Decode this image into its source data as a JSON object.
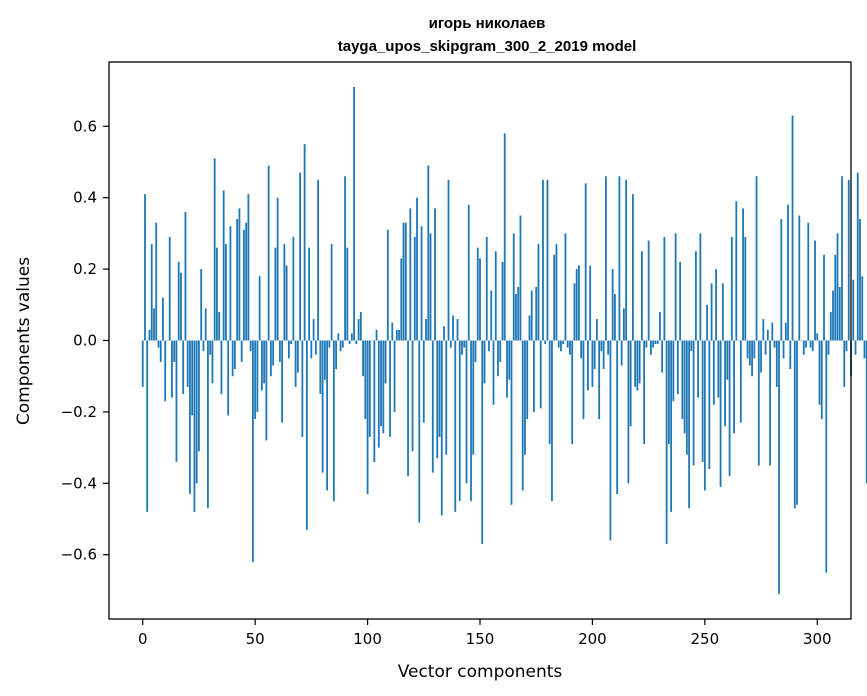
{
  "chart_data": {
    "type": "bar",
    "title": "игорь николаев",
    "subtitle": "tayga_upos_skipgram_300_2_2019 model",
    "xlabel": "Vector components",
    "ylabel": "Components values",
    "xlim": [
      -15,
      315
    ],
    "ylim": [
      -0.78,
      0.78
    ],
    "xticks": [
      0,
      50,
      100,
      150,
      200,
      250,
      300
    ],
    "yticks": [
      -0.6,
      -0.4,
      -0.2,
      0.0,
      0.2,
      0.4,
      0.6
    ],
    "ytick_labels": [
      "−0.6",
      "−0.4",
      "−0.2",
      "0.0",
      "0.2",
      "0.4",
      "0.6"
    ],
    "bar_color": "#1f77b4",
    "grid": false,
    "values": [
      -0.13,
      0.41,
      -0.48,
      0.03,
      0.27,
      0.09,
      0.33,
      -0.02,
      -0.06,
      0.12,
      -0.17,
      0.0,
      0.29,
      -0.16,
      -0.06,
      -0.34,
      0.22,
      0.19,
      -0.15,
      0.36,
      -0.13,
      -0.43,
      -0.21,
      -0.48,
      -0.4,
      -0.31,
      0.2,
      -0.03,
      0.09,
      -0.47,
      -0.04,
      -0.12,
      0.51,
      0.26,
      0.08,
      -0.15,
      0.42,
      0.27,
      -0.21,
      0.32,
      -0.1,
      -0.08,
      0.34,
      0.37,
      -0.06,
      0.31,
      0.33,
      0.41,
      -0.03,
      -0.62,
      -0.22,
      -0.2,
      0.18,
      -0.14,
      -0.12,
      -0.28,
      0.49,
      -0.1,
      -0.07,
      0.26,
      0.4,
      -0.06,
      -0.23,
      0.27,
      0.21,
      -0.05,
      -0.01,
      0.29,
      -0.13,
      -0.09,
      0.47,
      -0.27,
      0.55,
      -0.53,
      0.26,
      -0.05,
      0.06,
      -0.04,
      0.45,
      -0.15,
      -0.37,
      -0.11,
      -0.42,
      -0.02,
      0.27,
      -0.45,
      -0.08,
      0.02,
      -0.03,
      -0.02,
      0.46,
      0.26,
      -0.01,
      0.02,
      0.71,
      -0.01,
      0.06,
      0.08,
      -0.1,
      -0.22,
      -0.43,
      -0.27,
      0.0,
      -0.34,
      0.03,
      -0.3,
      -0.24,
      -0.26,
      -0.12,
      0.31,
      -0.27,
      0.05,
      -0.2,
      0.03,
      0.03,
      0.23,
      0.33,
      0.33,
      -0.38,
      0.37,
      -0.31,
      0.29,
      0.4,
      -0.51,
      0.32,
      -0.23,
      0.06,
      0.49,
      0.3,
      -0.37,
      0.37,
      -0.33,
      -0.27,
      -0.49,
      0.04,
      -0.32,
      0.45,
      -0.02,
      0.07,
      -0.48,
      0.06,
      -0.45,
      -0.04,
      -0.02,
      -0.4,
      0.38,
      -0.45,
      -0.32,
      -0.06,
      0.26,
      0.23,
      -0.57,
      -0.12,
      0.29,
      -0.03,
      0.14,
      -0.18,
      0.25,
      -0.1,
      -0.06,
      0.22,
      0.58,
      -0.16,
      -0.11,
      -0.46,
      0.3,
      0.13,
      0.15,
      0.35,
      -0.42,
      -0.32,
      -0.22,
      0.07,
      0.14,
      -0.2,
      0.15,
      0.27,
      -0.19,
      0.45,
      -0.01,
      0.45,
      -0.29,
      -0.45,
      0.24,
      0.27,
      -0.02,
      -0.03,
      -0.01,
      0.3,
      -0.02,
      -0.04,
      -0.29,
      0.16,
      0.2,
      0.21,
      -0.05,
      -0.22,
      0.44,
      -0.14,
      0.21,
      -0.13,
      -0.08,
      0.06,
      -0.22,
      -0.03,
      -0.08,
      0.46,
      -0.04,
      -0.56,
      0.2,
      0.13,
      -0.43,
      0.46,
      -0.07,
      0.09,
      0.45,
      -0.4,
      -0.24,
      0.41,
      -0.13,
      -0.14,
      -0.12,
      0.25,
      -0.29,
      -0.02,
      0.28,
      -0.04,
      -0.02,
      -0.01,
      -0.01,
      0.08,
      -0.09,
      0.29,
      -0.57,
      -0.29,
      -0.48,
      -0.17,
      0.3,
      -0.15,
      0.22,
      -0.22,
      -0.26,
      -0.32,
      -0.47,
      -0.03,
      -0.35,
      0.25,
      -0.16,
      0.3,
      -0.34,
      -0.42,
      0.1,
      -0.36,
      0.16,
      -0.18,
      0.2,
      -0.16,
      -0.41,
      0.16,
      -0.24,
      -0.11,
      -0.38,
      0.29,
      -0.26,
      0.39,
      0.0,
      -0.23,
      0.37,
      0.29,
      -0.05,
      -0.07,
      -0.1,
      -0.05,
      0.46,
      -0.35,
      -0.09,
      0.06,
      -0.04,
      0.03,
      -0.35,
      0.05,
      -0.02,
      -0.13,
      -0.71,
      0.34,
      -0.05,
      0.05,
      0.38,
      -0.08,
      0.63,
      -0.47,
      -0.46,
      0.35,
      0.0,
      -0.04,
      -0.02,
      0.33,
      -0.02,
      -0.03,
      0.28,
      0.02,
      -0.18,
      -0.22,
      0.24,
      -0.65,
      -0.04,
      0.08,
      0.14,
      0.24,
      0.3,
      0.15,
      0.46,
      -0.13,
      -0.03,
      0.45,
      -0.1,
      0.17,
      -0.04,
      0.47,
      0.34,
      0.18,
      -0.05,
      -0.4
    ]
  }
}
